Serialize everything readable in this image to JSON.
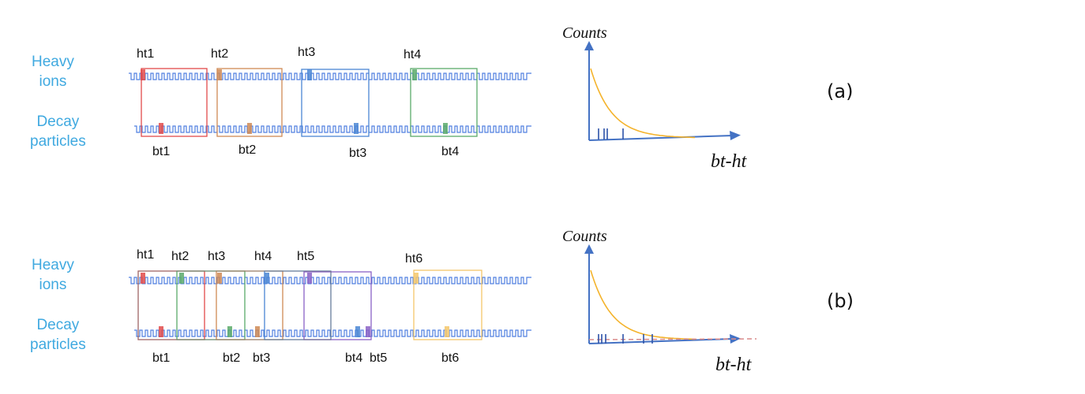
{
  "panels": [
    {
      "id": "a",
      "label": "(a)",
      "row_labels": {
        "heavy": [
          "Heavy",
          "ions"
        ],
        "decay": [
          "Decay",
          "particles"
        ]
      },
      "heavy_times": [
        "ht1",
        "ht2",
        "ht3",
        "ht4"
      ],
      "decay_times": [
        "bt1",
        "bt2",
        "bt3",
        "bt4"
      ],
      "plot": {
        "ylabel": "Counts",
        "xlabel": "bt-ht",
        "flat_background": false
      }
    },
    {
      "id": "b",
      "label": "(b)",
      "row_labels": {
        "heavy": [
          "Heavy",
          "ions"
        ],
        "decay": [
          "Decay",
          "particles"
        ]
      },
      "heavy_times": [
        "ht1",
        "ht2",
        "ht3",
        "ht4",
        "ht5",
        "ht6"
      ],
      "decay_times": [
        "bt1",
        "bt2",
        "bt3",
        "bt4",
        "bt5",
        "bt6"
      ],
      "plot": {
        "ylabel": "Counts",
        "xlabel": "bt-ht",
        "flat_background": true
      }
    }
  ],
  "colors": {
    "signal_line": "#4f7fe0",
    "row_label": "#3fa9e0",
    "axis": "#4472c4",
    "decay_curve": "#f4b32c",
    "background_fit": "#d98a8a",
    "event_colors": [
      "#e24a4a",
      "#cf8a55",
      "#4a86d4",
      "#5aaa6a",
      "#8a62c6",
      "#f4c76a"
    ]
  }
}
